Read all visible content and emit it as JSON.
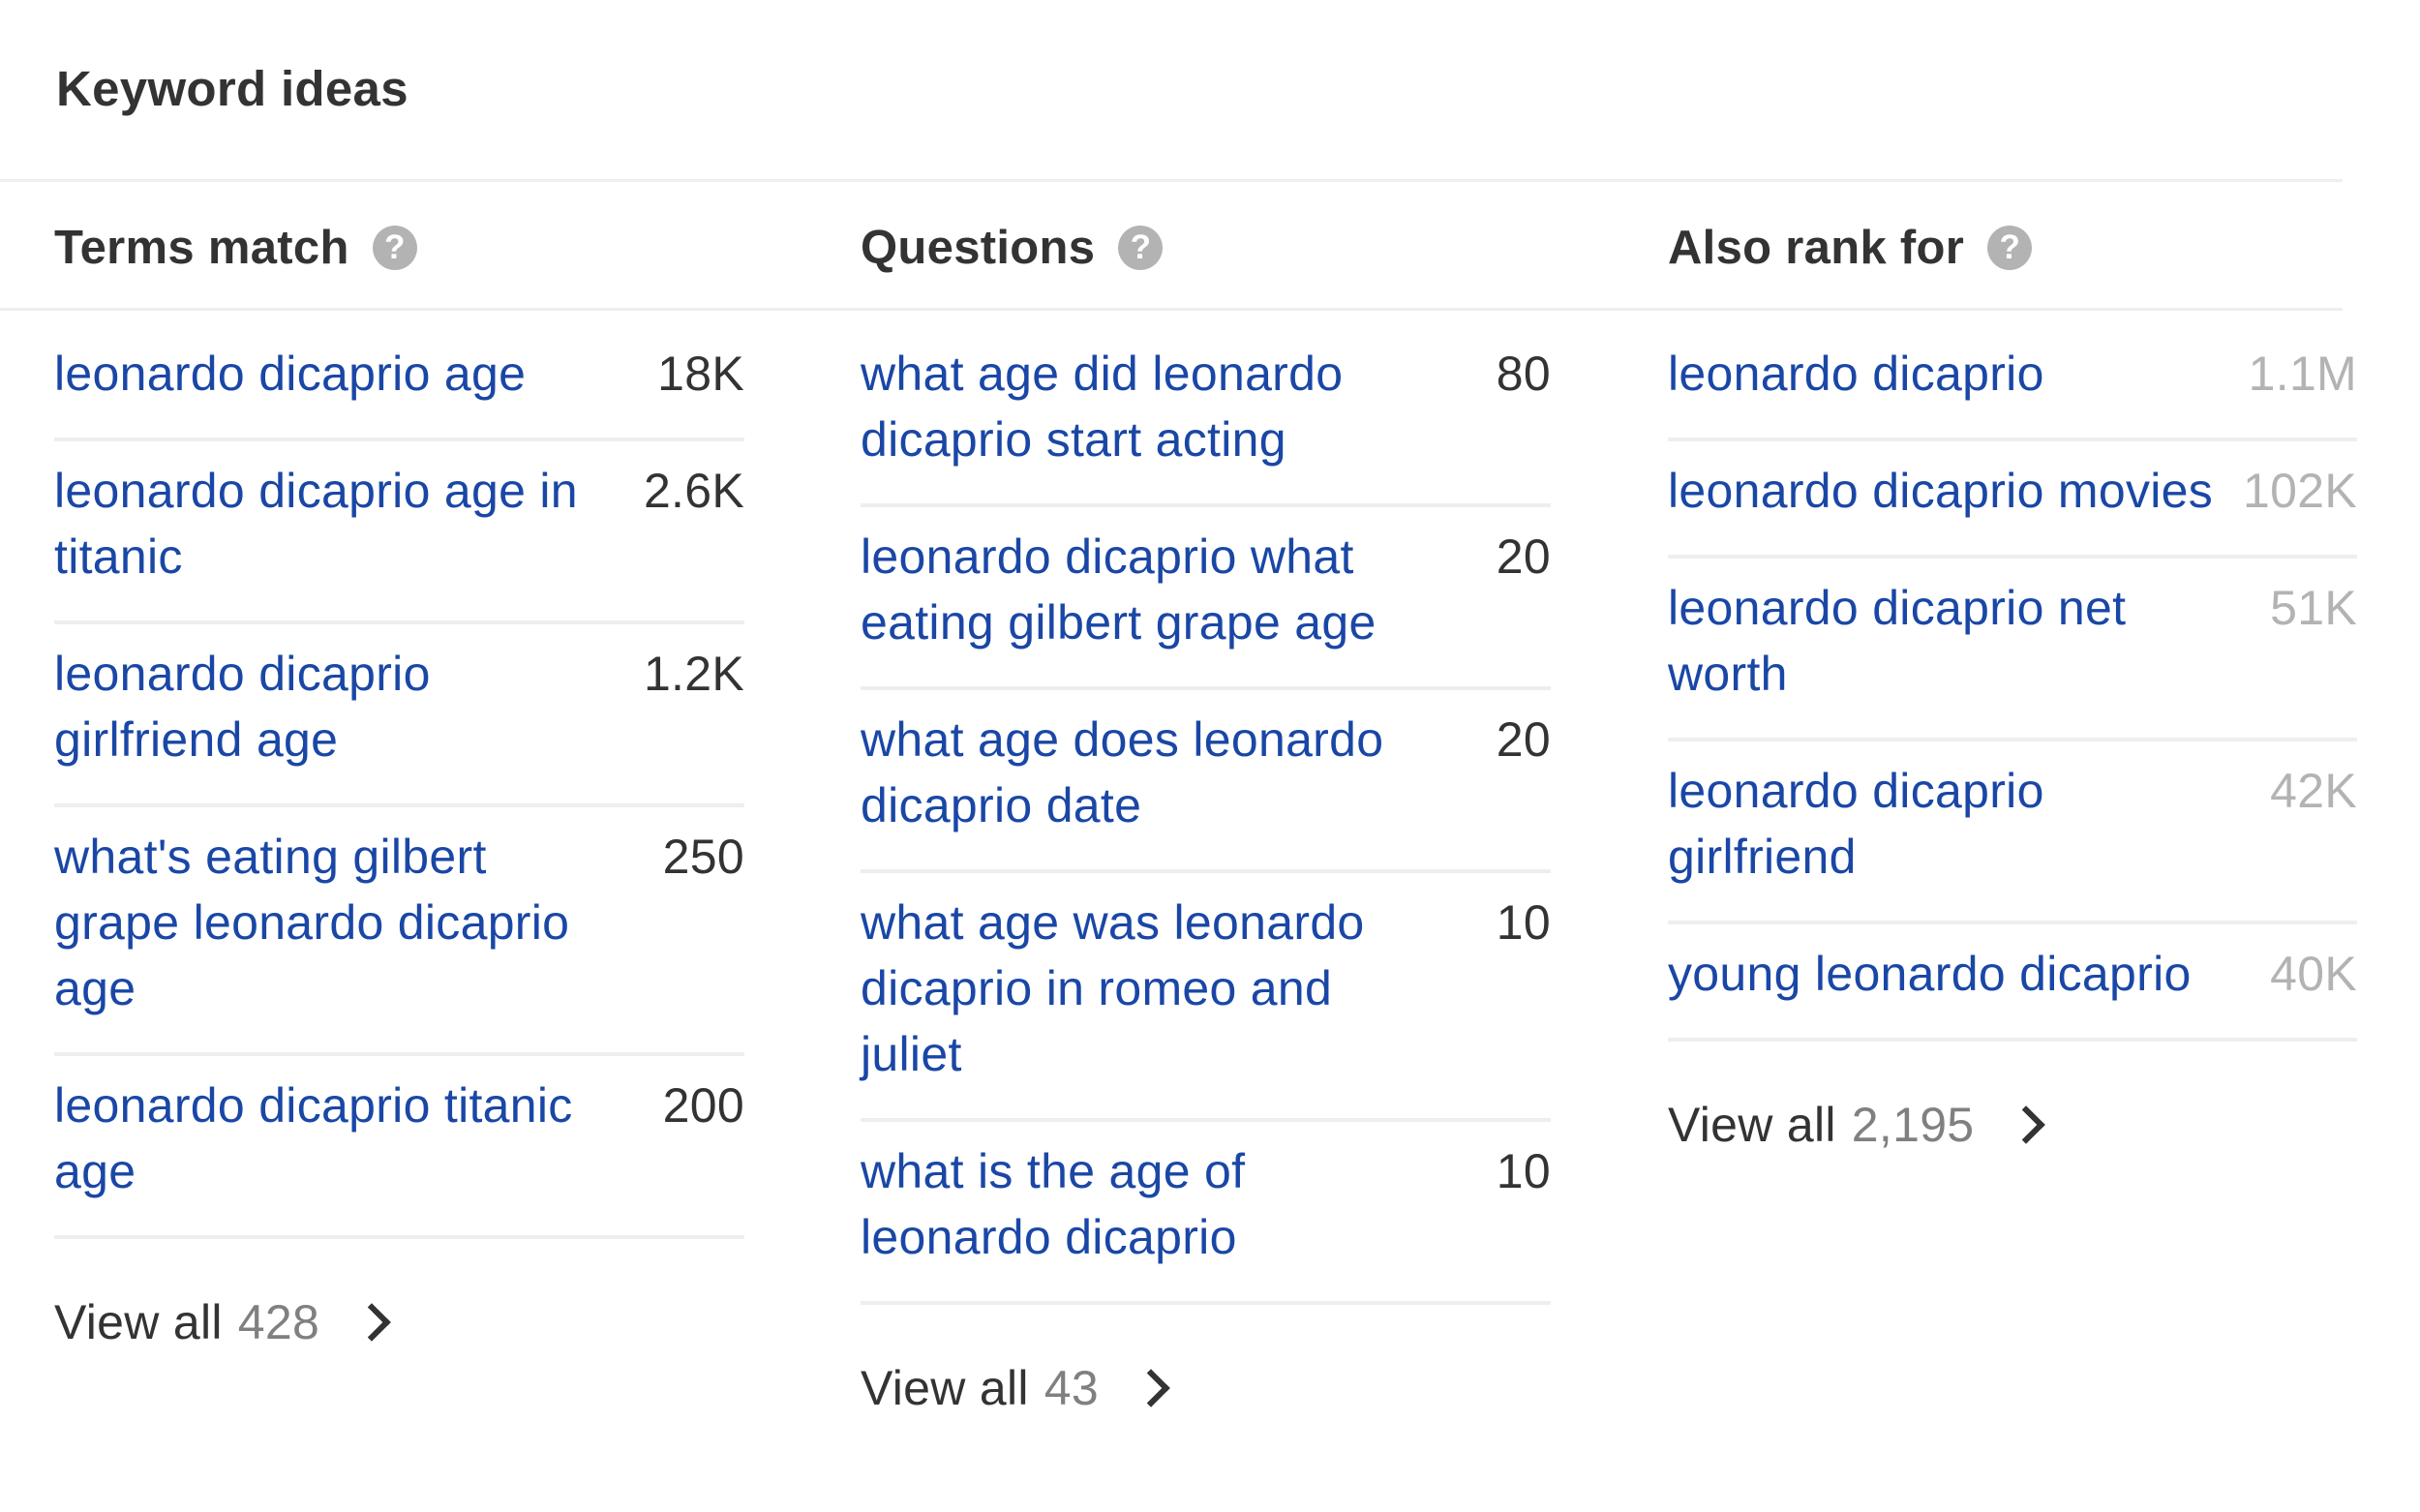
{
  "panel": {
    "title": "Keyword ideas"
  },
  "columns": [
    {
      "title": "Terms match",
      "help_icon": "question-mark-icon",
      "rows": [
        {
          "keyword": "leonardo dicaprio age",
          "volume": "18K"
        },
        {
          "keyword": "leonardo dicaprio age in titanic",
          "volume": "2.6K"
        },
        {
          "keyword": "leonardo dicaprio girlfriend age",
          "volume": "1.2K"
        },
        {
          "keyword": "what's eating gilbert grape leonardo dicaprio age",
          "volume": "250"
        },
        {
          "keyword": "leonardo dicaprio titanic age",
          "volume": "200"
        }
      ],
      "view_all_label": "View all",
      "view_all_count": "428"
    },
    {
      "title": "Questions",
      "help_icon": "question-mark-icon",
      "rows": [
        {
          "keyword": "what age did leonardo dicaprio start acting",
          "volume": "80"
        },
        {
          "keyword": "leonardo dicaprio what eating gilbert grape age",
          "volume": "20"
        },
        {
          "keyword": "what age does leonardo dicaprio date",
          "volume": "20"
        },
        {
          "keyword": "what age was leonardo dicaprio in romeo and juliet",
          "volume": "10"
        },
        {
          "keyword": "what is the age of leonardo dicaprio",
          "volume": "10"
        }
      ],
      "view_all_label": "View all",
      "view_all_count": "43"
    },
    {
      "title": "Also rank for",
      "help_icon": "question-mark-icon",
      "rows": [
        {
          "keyword": "leonardo dicaprio",
          "volume": "1.1M"
        },
        {
          "keyword": "leonardo dicaprio movies",
          "volume": "102K"
        },
        {
          "keyword": "leonardo dicaprio net worth",
          "volume": "51K"
        },
        {
          "keyword": "leonardo dicaprio girlfriend",
          "volume": "42K"
        },
        {
          "keyword": "young leonardo dicaprio",
          "volume": "40K"
        }
      ],
      "view_all_label": "View all",
      "view_all_count": "2,195"
    }
  ],
  "colors": {
    "link": "#1a47a6",
    "text": "#333333",
    "muted": "#808080",
    "faded_volume": "#b3b3b3",
    "divider": "#eeeeee"
  }
}
